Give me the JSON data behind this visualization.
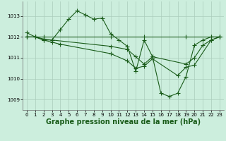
{
  "title": "Graphe pression niveau de la mer (hPa)",
  "bg_color": "#cceedd",
  "grid_color": "#aaccbb",
  "line_color": "#1a5c1a",
  "xlim": [
    -0.5,
    23.5
  ],
  "ylim": [
    1008.5,
    1013.7
  ],
  "yticks": [
    1009,
    1010,
    1011,
    1012,
    1013
  ],
  "xticks": [
    0,
    1,
    2,
    3,
    4,
    5,
    6,
    7,
    8,
    9,
    10,
    11,
    12,
    13,
    14,
    15,
    16,
    17,
    18,
    19,
    20,
    21,
    22,
    23
  ],
  "lines": [
    {
      "x": [
        0,
        1,
        2,
        3,
        4,
        5,
        6,
        7,
        8,
        9,
        10,
        11,
        12,
        13,
        14,
        15,
        16,
        17,
        18,
        19,
        20,
        21,
        22,
        23
      ],
      "y": [
        1012.2,
        1012.0,
        1011.85,
        1011.85,
        1012.35,
        1012.85,
        1013.25,
        1013.05,
        1012.85,
        1012.9,
        1012.15,
        1011.85,
        1011.55,
        1010.35,
        1011.85,
        1011.05,
        1009.3,
        1009.15,
        1009.3,
        1010.1,
        1011.6,
        1011.85,
        1012.0,
        1012.0
      ]
    },
    {
      "x": [
        0,
        1,
        2,
        10,
        14,
        19,
        22,
        23
      ],
      "y": [
        1012.0,
        1012.0,
        1012.0,
        1012.0,
        1012.0,
        1012.0,
        1012.0,
        1012.0
      ]
    },
    {
      "x": [
        0,
        1,
        2,
        3,
        10,
        12,
        13,
        14,
        15,
        19,
        20,
        21,
        22,
        23
      ],
      "y": [
        1012.0,
        1012.0,
        1011.9,
        1011.85,
        1011.55,
        1011.4,
        1011.05,
        1010.7,
        1011.05,
        1010.7,
        1011.0,
        1011.6,
        1011.85,
        1012.0
      ]
    },
    {
      "x": [
        0,
        1,
        2,
        3,
        4,
        10,
        12,
        13,
        14,
        15,
        18,
        19,
        20,
        22,
        23
      ],
      "y": [
        1012.0,
        1012.0,
        1011.85,
        1011.75,
        1011.65,
        1011.2,
        1010.85,
        1010.5,
        1010.6,
        1010.95,
        1010.15,
        1010.55,
        1010.65,
        1011.85,
        1012.0
      ]
    }
  ],
  "marker": "+",
  "markersize": 4.0,
  "linewidth": 0.8,
  "title_fontsize": 7,
  "tick_fontsize": 5
}
